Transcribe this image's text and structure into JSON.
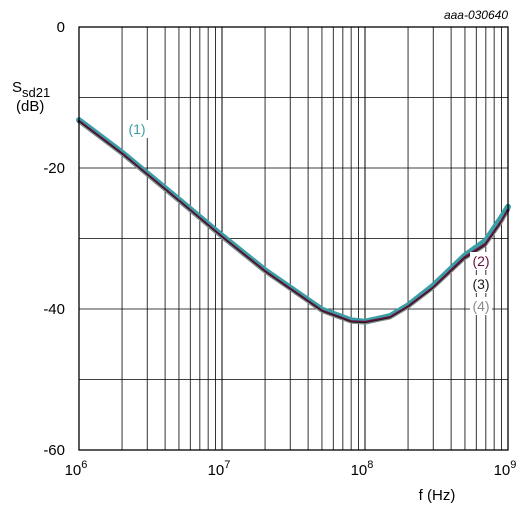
{
  "chart_data": {
    "type": "line",
    "figure_ref": "aaa-030640",
    "title": "",
    "xlabel": "f (Hz)",
    "ylabel_main": "S",
    "ylabel_sub": "sd21",
    "ylabel_unit": "(dB)",
    "x_scale": "log",
    "xlim": [
      1000000,
      1000000000
    ],
    "ylim": [
      -60,
      0
    ],
    "x_ticks": [
      {
        "base": "10",
        "exp": "6"
      },
      {
        "base": "10",
        "exp": "7"
      },
      {
        "base": "10",
        "exp": "8"
      },
      {
        "base": "10",
        "exp": "9"
      }
    ],
    "y_ticks": [
      "0",
      "-20",
      "-40",
      "-60"
    ],
    "y_tick_values": [
      0,
      -20,
      -40,
      -60
    ],
    "grid": true,
    "series": [
      {
        "annotation": "(1)",
        "color": "#3a9ea5",
        "x": [
          1000000,
          2000000,
          5000000,
          10000000,
          20000000,
          50000000,
          80000000,
          100000000,
          150000000,
          200000000,
          300000000,
          500000000,
          700000000,
          900000000,
          1000000000
        ],
        "y": [
          -13.2,
          -17.8,
          -24.5,
          -29.6,
          -34.5,
          -40.1,
          -41.6,
          -41.8,
          -41.0,
          -39.5,
          -36.7,
          -32.4,
          -30.3,
          -27.0,
          -25.5
        ]
      },
      {
        "annotation": "(2)",
        "color": "#6a1040",
        "x": [
          1000000,
          2000000,
          5000000,
          10000000,
          20000000,
          50000000,
          80000000,
          100000000,
          150000000,
          200000000,
          300000000,
          500000000,
          700000000,
          900000000,
          1000000000
        ],
        "y": [
          -13.4,
          -18.0,
          -24.7,
          -29.8,
          -34.7,
          -40.3,
          -41.8,
          -41.9,
          -41.2,
          -39.7,
          -37.0,
          -32.7,
          -30.8,
          -27.6,
          -26.0
        ]
      },
      {
        "annotation": "(3)",
        "color": "#1a1a1a",
        "x": [
          1000000,
          2000000,
          5000000,
          10000000,
          20000000,
          50000000,
          80000000,
          100000000,
          150000000,
          200000000,
          300000000,
          500000000,
          700000000,
          900000000,
          1000000000
        ],
        "y": [
          -13.5,
          -18.1,
          -24.8,
          -29.9,
          -34.8,
          -40.4,
          -41.9,
          -42.0,
          -41.3,
          -39.8,
          -37.1,
          -32.9,
          -31.0,
          -27.8,
          -26.2
        ]
      },
      {
        "annotation": "(4)",
        "color": "#8a8a8a",
        "x": [
          1000000,
          2000000,
          5000000,
          10000000,
          20000000,
          50000000,
          80000000,
          100000000,
          150000000,
          200000000,
          300000000,
          500000000,
          700000000,
          900000000,
          1000000000
        ],
        "y": [
          -13.6,
          -18.2,
          -24.9,
          -30.0,
          -34.9,
          -40.5,
          -42.0,
          -42.1,
          -41.4,
          -39.9,
          -37.2,
          -33.0,
          -31.1,
          -27.9,
          -26.3
        ]
      }
    ]
  }
}
